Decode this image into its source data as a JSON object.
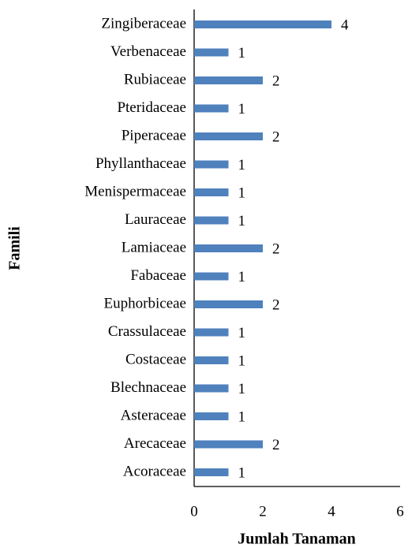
{
  "chart_data": {
    "type": "bar",
    "orientation": "horizontal",
    "categories": [
      "Zingiberaceae",
      "Verbenaceae",
      "Rubiaceae",
      "Pteridaceae",
      "Piperaceae",
      "Phyllanthaceae",
      "Menispermaceae",
      "Lauraceae",
      "Lamiaceae",
      "Fabaceae",
      "Euphorbiceae",
      "Crassulaceae",
      "Costaceae",
      "Blechnaceae",
      "Asteraceae",
      "Arecaceae",
      "Acoraceae"
    ],
    "values": [
      4,
      1,
      2,
      1,
      2,
      1,
      1,
      1,
      2,
      1,
      2,
      1,
      1,
      1,
      1,
      2,
      1
    ],
    "color": "#4f81bd",
    "xlim": [
      0,
      6
    ],
    "xticks": [
      0,
      2,
      4,
      6
    ],
    "xlabel": "Jumlah Tanaman",
    "ylabel": "Famili",
    "grid": false
  }
}
